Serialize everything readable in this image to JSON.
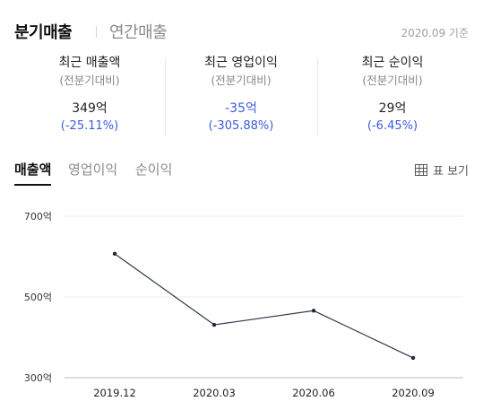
{
  "header": {
    "tab_quarterly": "분기매출",
    "tab_annual": "연간매출",
    "base_date": "2020.09 기준"
  },
  "summary": [
    {
      "title": "최근 매출액",
      "sub": "(전분기대비)",
      "value": "349억",
      "change": "(-25.11%)",
      "negative_value": false
    },
    {
      "title": "최근 영업이익",
      "sub": "(전분기대비)",
      "value": "-35억",
      "change": "(-305.88%)",
      "negative_value": true
    },
    {
      "title": "최근 순이익",
      "sub": "(전분기대비)",
      "value": "29억",
      "change": "(-6.45%)",
      "negative_value": false
    }
  ],
  "chart_tabs": {
    "revenue": "매출액",
    "operating_profit": "영업이익",
    "net_income": "순이익",
    "active": "revenue"
  },
  "table_view": {
    "label": "표 보기",
    "icon": "table-icon"
  },
  "colors": {
    "accent_blue": "#3b5bdb",
    "line": "#2b3a4a",
    "axis": "#c9d3e6"
  },
  "chart_data": {
    "type": "line",
    "categories": [
      "2019.12",
      "2020.03",
      "2020.06",
      "2020.09"
    ],
    "values": [
      607,
      431,
      466,
      349
    ],
    "ylim": [
      300,
      700
    ],
    "yticks": [
      700,
      500,
      300
    ],
    "ytick_labels": [
      "700억",
      "500억",
      "300억"
    ],
    "grid": true
  }
}
